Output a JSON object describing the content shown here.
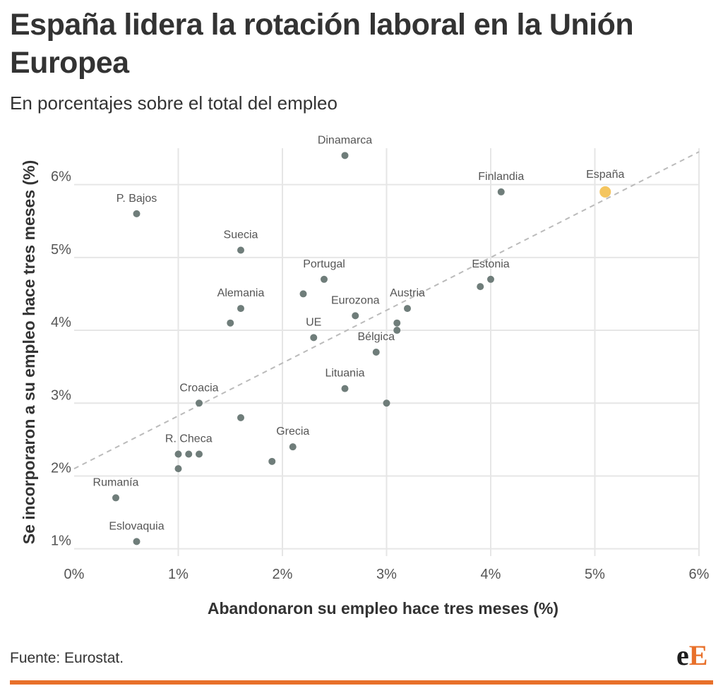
{
  "title": "España lidera la rotación laboral en la Unión Europea",
  "subtitle": "En porcentajes sobre el total del empleo",
  "source": "Fuente: Eurostat.",
  "logo": {
    "part1": "e",
    "part2": "E"
  },
  "colors": {
    "text": "#333333",
    "grid": "#e6e6e6",
    "point": "#6f7d7a",
    "highlight": "#f4c55f",
    "trendline": "#bbbbbb",
    "accent": "#e8702a"
  },
  "chart_data": {
    "type": "scatter",
    "xlabel": "Abandonaron su empleo hace tres meses (%)",
    "ylabel": "Se incorporaron a su empleo hace tres meses (%)",
    "xlim": [
      0,
      6
    ],
    "ylim": [
      0.9,
      6.5
    ],
    "x_ticks": [
      {
        "value": 0,
        "label": "0%"
      },
      {
        "value": 1,
        "label": "1%"
      },
      {
        "value": 2,
        "label": "2%"
      },
      {
        "value": 3,
        "label": "3%"
      },
      {
        "value": 4,
        "label": "4%"
      },
      {
        "value": 5,
        "label": "5%"
      },
      {
        "value": 6,
        "label": "6%"
      }
    ],
    "y_ticks": [
      {
        "value": 1,
        "label": "1%"
      },
      {
        "value": 2,
        "label": "2%"
      },
      {
        "value": 3,
        "label": "3%"
      },
      {
        "value": 4,
        "label": "4%"
      },
      {
        "value": 5,
        "label": "5%"
      },
      {
        "value": 6,
        "label": "6%"
      }
    ],
    "grid": true,
    "trendline": {
      "from": [
        0,
        2.1
      ],
      "to": [
        6,
        6.45
      ],
      "style": "dashed"
    },
    "points": [
      {
        "x": 2.6,
        "y": 6.4,
        "label": "Dinamarca"
      },
      {
        "x": 4.1,
        "y": 5.9,
        "label": "Finlandia"
      },
      {
        "x": 5.1,
        "y": 5.9,
        "label": "España",
        "highlight": true
      },
      {
        "x": 0.6,
        "y": 5.6,
        "label": "P. Bajos"
      },
      {
        "x": 1.6,
        "y": 5.1,
        "label": "Suecia"
      },
      {
        "x": 2.4,
        "y": 4.7,
        "label": "Portugal"
      },
      {
        "x": 4.0,
        "y": 4.7,
        "label": "Estonia"
      },
      {
        "x": 3.9,
        "y": 4.6
      },
      {
        "x": 2.2,
        "y": 4.5
      },
      {
        "x": 1.6,
        "y": 4.3,
        "label": "Alemania"
      },
      {
        "x": 3.2,
        "y": 4.3,
        "label": "Austria"
      },
      {
        "x": 2.7,
        "y": 4.2,
        "label": "Eurozona"
      },
      {
        "x": 1.5,
        "y": 4.1
      },
      {
        "x": 3.1,
        "y": 4.1
      },
      {
        "x": 3.1,
        "y": 4.0
      },
      {
        "x": 2.3,
        "y": 3.9,
        "label": "UE"
      },
      {
        "x": 2.9,
        "y": 3.7,
        "label": "Bélgica"
      },
      {
        "x": 2.6,
        "y": 3.2,
        "label": "Lituania"
      },
      {
        "x": 1.2,
        "y": 3.0,
        "label": "Croacia"
      },
      {
        "x": 3.0,
        "y": 3.0
      },
      {
        "x": 1.6,
        "y": 2.8
      },
      {
        "x": 2.1,
        "y": 2.4,
        "label": "Grecia"
      },
      {
        "x": 1.0,
        "y": 2.3
      },
      {
        "x": 1.1,
        "y": 2.3,
        "label": "R. Checa"
      },
      {
        "x": 1.2,
        "y": 2.3
      },
      {
        "x": 1.9,
        "y": 2.2
      },
      {
        "x": 1.0,
        "y": 2.1
      },
      {
        "x": 0.4,
        "y": 1.7,
        "label": "Rumanía"
      },
      {
        "x": 0.6,
        "y": 1.1,
        "label": "Eslovaquia"
      }
    ]
  }
}
